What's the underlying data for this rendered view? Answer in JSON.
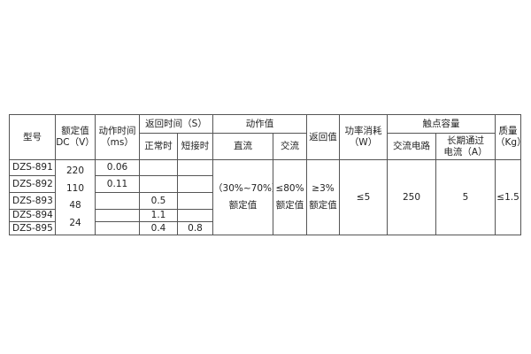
{
  "headers": {
    "model": "型号",
    "rated_dc": [
      "额定值",
      "DC（V）"
    ],
    "action_time": [
      "动作时间",
      "（ms）"
    ],
    "return_time": "返回时间（S）",
    "return_normal": "正常时",
    "return_short": "短接时",
    "action_value": "动作值",
    "action_dc": "直流",
    "action_ac": "交流",
    "return_value": "返回值",
    "power": [
      "功率消耗",
      "（W）"
    ],
    "contact_capacity": "触点容量",
    "ac_circuit": "交流电路",
    "long_current": [
      "长期通过",
      "电流（A）"
    ],
    "mass": [
      "质量",
      "（Kg）"
    ]
  },
  "rows": [
    {
      "model": "DZS-891",
      "action_time": "0.06",
      "return_normal": "",
      "return_short": ""
    },
    {
      "model": "DZS-892",
      "action_time": "0.11",
      "return_normal": "",
      "return_short": ""
    },
    {
      "model": "DZS-893",
      "action_time": "",
      "return_normal": "0.5",
      "return_short": ""
    },
    {
      "model": "DZS-894",
      "action_time": "",
      "return_normal": "1.1",
      "return_short": ""
    },
    {
      "model": "DZS-895",
      "action_time": "",
      "return_normal": "0.4",
      "return_short": "0.8"
    }
  ],
  "voltages": [
    "220",
    "110",
    "48",
    "24"
  ],
  "shared": {
    "action_dc": [
      "（30%~70%）",
      "额定值"
    ],
    "action_ac": [
      "≤80%",
      "额定值"
    ],
    "return_value": [
      "≥3%",
      "额定值"
    ],
    "power": "≤5",
    "ac_circuit": "250",
    "long_current": "5",
    "mass": "≤1.5"
  }
}
